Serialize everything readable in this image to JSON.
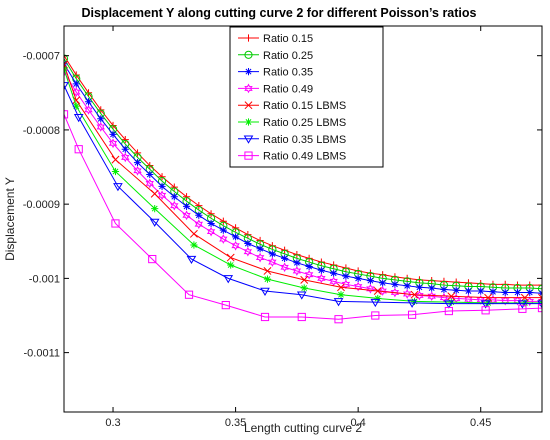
{
  "chart_data": {
    "type": "line",
    "title": "Displacement Y along cutting curve 2 for different Poisson’s ratios",
    "xlabel": "Length cutting curve 2",
    "ylabel": "Displacement Y",
    "xlim": [
      0.28,
      0.475
    ],
    "ylim": [
      -0.00118,
      -0.00066
    ],
    "x_ticks": [
      0.3,
      0.35,
      0.4,
      0.45
    ],
    "x_tick_labels": [
      "0.3",
      "0.35",
      "0.4",
      "0.45"
    ],
    "y_ticks": [
      -0.0007,
      -0.0008,
      -0.0009,
      -0.001,
      -0.0011
    ],
    "y_tick_labels": [
      "-0.0007",
      "-0.0008",
      "-0.0009",
      "-0.001",
      "-0.0011"
    ],
    "grid": false,
    "legend_position": "top-center",
    "series": [
      {
        "name": "Ratio 0.15",
        "color": "#ff0000",
        "marker": "plus",
        "x": [
          0.28,
          0.285,
          0.29,
          0.295,
          0.3,
          0.305,
          0.31,
          0.315,
          0.32,
          0.325,
          0.33,
          0.335,
          0.34,
          0.345,
          0.35,
          0.355,
          0.36,
          0.365,
          0.37,
          0.375,
          0.38,
          0.385,
          0.39,
          0.395,
          0.4,
          0.405,
          0.41,
          0.415,
          0.42,
          0.425,
          0.43,
          0.435,
          0.44,
          0.445,
          0.45,
          0.455,
          0.46,
          0.465,
          0.47,
          0.475
        ],
        "y": [
          -0.0007,
          -0.000726,
          -0.00075,
          -0.000773,
          -0.000794,
          -0.000813,
          -0.000831,
          -0.000848,
          -0.000863,
          -0.000877,
          -0.00089,
          -0.000902,
          -0.000913,
          -0.000923,
          -0.000932,
          -0.000941,
          -0.000949,
          -0.000956,
          -0.000962,
          -0.000968,
          -0.000973,
          -0.000978,
          -0.000982,
          -0.000986,
          -0.00099,
          -0.000993,
          -0.000995,
          -0.000998,
          -0.001,
          -0.001002,
          -0.001003,
          -0.001004,
          -0.001005,
          -0.001006,
          -0.001007,
          -0.001008,
          -0.001008,
          -0.001009,
          -0.001009,
          -0.001009
        ]
      },
      {
        "name": "Ratio 0.25",
        "color": "#00cc00",
        "marker": "circle",
        "x": [
          0.28,
          0.285,
          0.29,
          0.295,
          0.3,
          0.305,
          0.31,
          0.315,
          0.32,
          0.325,
          0.33,
          0.335,
          0.34,
          0.345,
          0.35,
          0.355,
          0.36,
          0.365,
          0.37,
          0.375,
          0.38,
          0.385,
          0.39,
          0.395,
          0.4,
          0.405,
          0.41,
          0.415,
          0.42,
          0.425,
          0.43,
          0.435,
          0.44,
          0.445,
          0.45,
          0.455,
          0.46,
          0.465,
          0.47,
          0.475
        ],
        "y": [
          -0.000704,
          -0.000731,
          -0.000755,
          -0.000778,
          -0.000799,
          -0.000819,
          -0.000837,
          -0.000853,
          -0.000869,
          -0.000883,
          -0.000896,
          -0.000908,
          -0.000919,
          -0.000929,
          -0.000938,
          -0.000946,
          -0.000954,
          -0.000961,
          -0.000967,
          -0.000973,
          -0.000978,
          -0.000983,
          -0.000987,
          -0.000991,
          -0.000994,
          -0.000997,
          -0.001,
          -0.001002,
          -0.001004,
          -0.001006,
          -0.001007,
          -0.001009,
          -0.00101,
          -0.001011,
          -0.001011,
          -0.001012,
          -0.001013,
          -0.001013,
          -0.001013,
          -0.001014
        ]
      },
      {
        "name": "Ratio 0.35",
        "color": "#0000ff",
        "marker": "star",
        "x": [
          0.28,
          0.285,
          0.29,
          0.295,
          0.3,
          0.305,
          0.31,
          0.315,
          0.32,
          0.325,
          0.33,
          0.335,
          0.34,
          0.345,
          0.35,
          0.355,
          0.36,
          0.365,
          0.37,
          0.375,
          0.38,
          0.385,
          0.39,
          0.395,
          0.4,
          0.405,
          0.41,
          0.415,
          0.42,
          0.425,
          0.43,
          0.435,
          0.44,
          0.445,
          0.45,
          0.455,
          0.46,
          0.465,
          0.47,
          0.475
        ],
        "y": [
          -0.000711,
          -0.000738,
          -0.000762,
          -0.000785,
          -0.000806,
          -0.000826,
          -0.000844,
          -0.00086,
          -0.000876,
          -0.00089,
          -0.000903,
          -0.000915,
          -0.000926,
          -0.000935,
          -0.000944,
          -0.000953,
          -0.00096,
          -0.000967,
          -0.000973,
          -0.000979,
          -0.000984,
          -0.000989,
          -0.000993,
          -0.000997,
          -0.001,
          -0.001003,
          -0.001006,
          -0.001008,
          -0.00101,
          -0.001012,
          -0.001013,
          -0.001015,
          -0.001016,
          -0.001017,
          -0.001017,
          -0.001018,
          -0.001019,
          -0.001019,
          -0.001019,
          -0.00102
        ]
      },
      {
        "name": "Ratio 0.49",
        "color": "#ff00ff",
        "marker": "hexagram",
        "x": [
          0.28,
          0.285,
          0.29,
          0.295,
          0.3,
          0.305,
          0.31,
          0.315,
          0.32,
          0.325,
          0.33,
          0.335,
          0.34,
          0.345,
          0.35,
          0.355,
          0.36,
          0.365,
          0.37,
          0.375,
          0.38,
          0.385,
          0.39,
          0.395,
          0.4,
          0.405,
          0.41,
          0.415,
          0.42,
          0.425,
          0.43,
          0.435,
          0.44,
          0.445,
          0.45,
          0.455,
          0.46,
          0.465,
          0.47,
          0.475
        ],
        "y": [
          -0.000722,
          -0.000749,
          -0.000773,
          -0.000796,
          -0.000818,
          -0.000837,
          -0.000855,
          -0.000872,
          -0.000888,
          -0.000902,
          -0.000915,
          -0.000927,
          -0.000937,
          -0.000947,
          -0.000956,
          -0.000964,
          -0.000972,
          -0.000978,
          -0.000985,
          -0.00099,
          -0.000995,
          -0.001,
          -0.001004,
          -0.001008,
          -0.001011,
          -0.001014,
          -0.001017,
          -0.001019,
          -0.001021,
          -0.001023,
          -0.001024,
          -0.001026,
          -0.001027,
          -0.001028,
          -0.001029,
          -0.001029,
          -0.00103,
          -0.00103,
          -0.001031,
          -0.001031
        ]
      },
      {
        "name": "Ratio 0.15 LBMS",
        "color": "#ff0000",
        "marker": "x",
        "x": [
          0.28,
          0.285,
          0.301,
          0.317,
          0.333,
          0.348,
          0.363,
          0.378,
          0.393,
          0.408,
          0.423,
          0.438,
          0.453,
          0.468,
          0.475
        ],
        "y": [
          -0.000712,
          -0.00076,
          -0.00084,
          -0.000886,
          -0.00094,
          -0.000972,
          -0.00099,
          -0.001002,
          -0.001012,
          -0.001017,
          -0.001022,
          -0.001024,
          -0.001026,
          -0.001026,
          -0.001026
        ]
      },
      {
        "name": "Ratio 0.25 LBMS",
        "color": "#00ee00",
        "marker": "star",
        "x": [
          0.28,
          0.285,
          0.301,
          0.317,
          0.333,
          0.348,
          0.363,
          0.378,
          0.393,
          0.408,
          0.423,
          0.438,
          0.453,
          0.468,
          0.475
        ],
        "y": [
          -0.000718,
          -0.000768,
          -0.000856,
          -0.000906,
          -0.000955,
          -0.000982,
          -0.001001,
          -0.001013,
          -0.001022,
          -0.001027,
          -0.001031,
          -0.001032,
          -0.001033,
          -0.001033,
          -0.001033
        ]
      },
      {
        "name": "Ratio 0.35 LBMS",
        "color": "#0000ff",
        "marker": "triangle-down",
        "x": [
          0.28,
          0.286,
          0.302,
          0.317,
          0.332,
          0.347,
          0.362,
          0.377,
          0.392,
          0.407,
          0.422,
          0.437,
          0.452,
          0.467,
          0.475
        ],
        "y": [
          -0.00074,
          -0.000783,
          -0.000876,
          -0.000924,
          -0.000974,
          -0.001,
          -0.001017,
          -0.001022,
          -0.001031,
          -0.001032,
          -0.001033,
          -0.001034,
          -0.001034,
          -0.001034,
          -0.001034
        ]
      },
      {
        "name": "Ratio 0.49 LBMS",
        "color": "#ff00ff",
        "marker": "square",
        "x": [
          0.28,
          0.286,
          0.301,
          0.316,
          0.331,
          0.346,
          0.362,
          0.377,
          0.392,
          0.407,
          0.422,
          0.437,
          0.452,
          0.467,
          0.475
        ],
        "y": [
          -0.000779,
          -0.000826,
          -0.000926,
          -0.000974,
          -0.001022,
          -0.001036,
          -0.001052,
          -0.001052,
          -0.001055,
          -0.00105,
          -0.001049,
          -0.001044,
          -0.001043,
          -0.001041,
          -0.00104
        ]
      }
    ]
  }
}
